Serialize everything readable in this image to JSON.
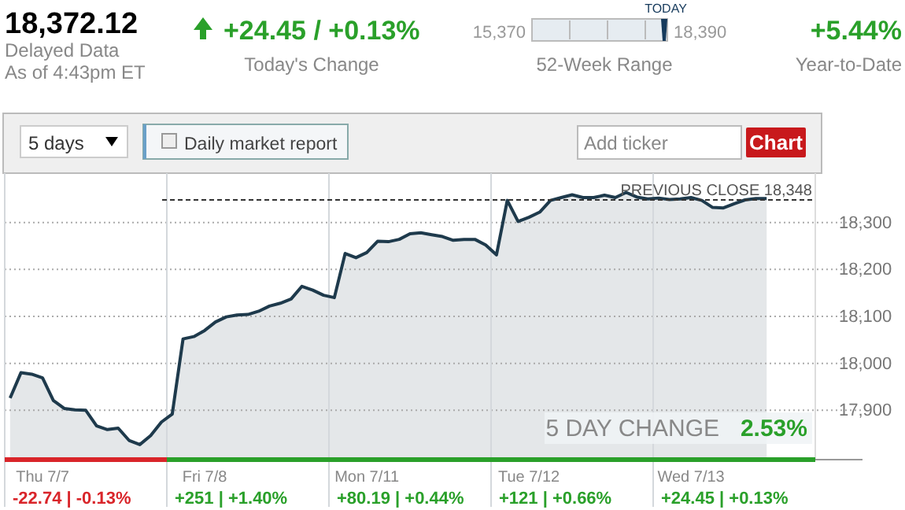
{
  "chart_data": {
    "type": "area",
    "title": "18,372.12",
    "annotations": [
      "Delayed Data",
      "As of 4:43pm ET",
      "+24.45 / +0.13%",
      "Today's Change",
      "15,370",
      "18,390",
      "TODAY",
      "52-Week Range",
      "+5.44%",
      "Year-to-Date",
      "5 days",
      "Daily market report",
      "Add ticker",
      "Chart",
      "5 DAY CHANGE",
      "2.53%",
      "-22.74 | -0.13%",
      "+251 | +1.40%",
      "+80.19 | +0.44%",
      "+121 | +0.66%",
      "+24.45 | +0.13%"
    ],
    "categories": [
      null,
      null,
      null,
      "Thu 7/7",
      null,
      null,
      null,
      null,
      null,
      null,
      null,
      null,
      null,
      null,
      null,
      null,
      null,
      null,
      "Fri 7/8",
      null,
      null,
      null,
      null,
      null,
      null,
      null,
      null,
      null,
      null,
      null,
      null,
      null,
      null,
      "Mon 7/11",
      null,
      null,
      null,
      null,
      null,
      null,
      null,
      null,
      null,
      null,
      null,
      null,
      null,
      null,
      "Tue 7/12",
      null,
      null,
      null,
      null,
      null,
      null,
      null,
      null,
      null,
      null,
      null,
      null,
      null,
      null,
      "Wed 7/13",
      null,
      null,
      null,
      null,
      null,
      null,
      null,
      null,
      null,
      null,
      null
    ],
    "series": [
      {
        "color": "#1e3a4c",
        "values": [
          17926,
          17980,
          17977,
          17969,
          17921,
          17904,
          17901,
          17900,
          17867,
          17859,
          17862,
          17836,
          17827,
          17846,
          17875,
          17892,
          18052,
          18057,
          18070,
          18088,
          18099,
          18103,
          18104,
          18111,
          18122,
          18128,
          18137,
          18164,
          18156,
          18145,
          18140,
          18234,
          18225,
          18236,
          18260,
          18259,
          18264,
          18276,
          18278,
          18274,
          18270,
          18262,
          18264,
          18264,
          18252,
          18231,
          18347,
          18302,
          18311,
          18322,
          18347,
          18353,
          18359,
          18353,
          18353,
          18358,
          18353,
          18364,
          18354,
          18350,
          18352,
          18349,
          18350,
          18353,
          18347,
          18332,
          18331,
          18340,
          18348,
          18351,
          18351,
          null,
          null,
          null,
          null
        ]
      }
    ],
    "ylim": [
      17795,
      18405
    ],
    "yticks": [
      {
        "value": 17900,
        "label": "17,900"
      },
      {
        "value": 18000,
        "label": "18,000"
      },
      {
        "value": 18100,
        "label": "18,100"
      },
      {
        "value": 18200,
        "label": "18,200"
      },
      {
        "value": 18300,
        "label": "18,300"
      }
    ],
    "grid": true,
    "ref_lines": [
      {
        "axis": "y",
        "value": 18348,
        "label": "PREVIOUS CLOSE 18,348",
        "color": "#333333",
        "line_style": "dashed"
      }
    ]
  }
}
